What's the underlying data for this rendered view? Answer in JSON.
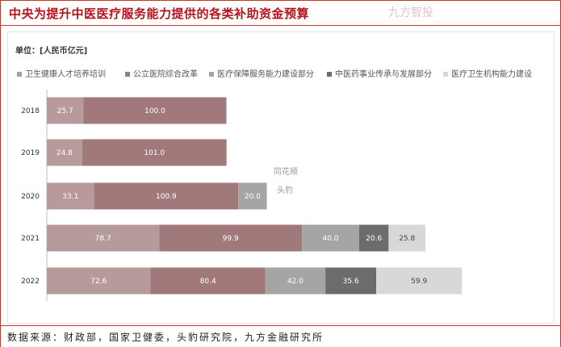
{
  "header": {
    "title": "中央为提升中医医疗服务能力提供的各类补助资金预算"
  },
  "chart": {
    "unit": "单位：[人民币亿元]"
  },
  "footer": {
    "source": "数据来源：财政部，国家卫健委，头豹研究院，九方金融研究所"
  },
  "watermarks": {
    "center_line1": "同花顺",
    "center_line2": "头豹",
    "corner": "九方智投"
  },
  "colors": {
    "series": [
      "#b79a9b",
      "#a1797a",
      "#a5a5a5",
      "#6c6c6c",
      "#d8d8d8"
    ],
    "title": "#b5121b",
    "border": "#c0392b"
  },
  "chart_data": {
    "type": "bar",
    "orientation": "horizontal",
    "stacked": true,
    "categories": [
      "2018",
      "2019",
      "2020",
      "2021",
      "2022"
    ],
    "series": [
      {
        "name": "卫生健康人才培养培训",
        "values": [
          25.7,
          24.8,
          33.1,
          78.7,
          72.6
        ]
      },
      {
        "name": "公立医院综合改革",
        "values": [
          100.0,
          101.0,
          100.9,
          99.9,
          80.4
        ]
      },
      {
        "name": "医疗保障服务能力建设部分",
        "values": [
          null,
          null,
          20.0,
          40.0,
          42.0
        ]
      },
      {
        "name": "中医药事业传承与发展部分",
        "values": [
          null,
          null,
          null,
          20.6,
          35.6
        ]
      },
      {
        "name": "医疗卫生机构能力建设",
        "values": [
          null,
          null,
          null,
          25.8,
          59.9
        ]
      }
    ],
    "data_labels": [
      [
        "25.7",
        "100.0",
        "",
        "",
        ""
      ],
      [
        "24.8",
        "101.0",
        "",
        "",
        ""
      ],
      [
        "33.1",
        "100.9",
        "20.0",
        "",
        ""
      ],
      [
        "78.7",
        "99.9",
        "40.0",
        "20.6",
        "25.8"
      ],
      [
        "72.6",
        "80.4",
        "42.0",
        "35.6",
        "59.9"
      ]
    ],
    "legend_position": "top",
    "grid": false
  }
}
